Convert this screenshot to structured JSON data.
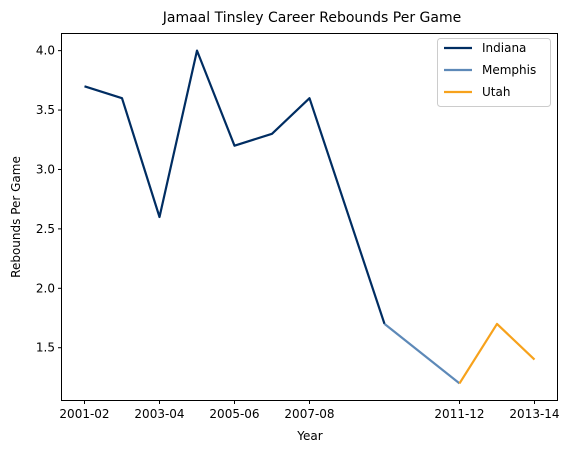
{
  "chart_data": {
    "type": "line",
    "title": "Jamaal Tinsley Career Rebounds Per Game",
    "xlabel": "Year",
    "ylabel": "Rebounds Per Game",
    "seasons": [
      "2001-02",
      "2002-03",
      "2003-04",
      "2004-05",
      "2005-06",
      "2006-07",
      "2007-08",
      "2009-10",
      "2011-12",
      "2012-13",
      "2013-14"
    ],
    "x_tick_labels": [
      "2001-02",
      "2003-04",
      "2005-06",
      "2007-08",
      "2011-12",
      "2013-14"
    ],
    "y_ticks": [
      1.5,
      2.0,
      2.5,
      3.0,
      3.5,
      4.0
    ],
    "y_tick_labels": [
      "1.5",
      "2.0",
      "2.5",
      "3.0",
      "3.5",
      "4.0"
    ],
    "ylim": [
      1.06,
      4.14
    ],
    "grid": false,
    "legend_placement": "top-right",
    "series": [
      {
        "name": "Indiana",
        "color": "#002d62",
        "x": [
          "2001-02",
          "2002-03",
          "2003-04",
          "2004-05",
          "2005-06",
          "2006-07",
          "2007-08",
          "2009-10"
        ],
        "values": [
          3.7,
          3.6,
          2.6,
          4.0,
          3.2,
          3.3,
          3.6,
          1.7
        ]
      },
      {
        "name": "Memphis",
        "color": "#5d89b8",
        "x": [
          "2009-10",
          "2011-12"
        ],
        "values": [
          1.7,
          1.2
        ]
      },
      {
        "name": "Utah",
        "color": "#f7a21c",
        "x": [
          "2011-12",
          "2012-13",
          "2013-14"
        ],
        "values": [
          1.2,
          1.7,
          1.4
        ]
      }
    ]
  }
}
